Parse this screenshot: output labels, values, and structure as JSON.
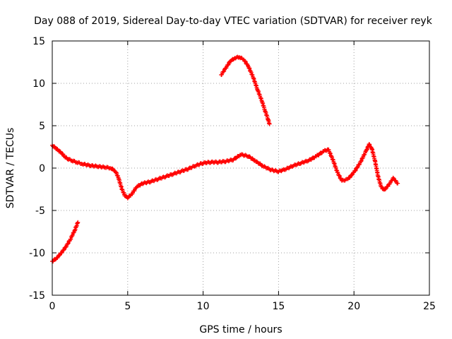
{
  "chart_data": {
    "type": "scatter",
    "title": "Day 088 of 2019, Sidereal Day-to-day VTEC variation (SDTVAR) for receiver reyk",
    "xlabel": "GPS time / hours",
    "ylabel": "SDTVAR / TECUs",
    "xlim": [
      0,
      25
    ],
    "ylim": [
      -15,
      15
    ],
    "x_ticks": [
      0,
      5,
      10,
      15,
      20,
      25
    ],
    "y_ticks": [
      -15,
      -10,
      -5,
      0,
      5,
      10,
      15
    ],
    "x_tick_labels": [
      "0",
      "5",
      "10",
      "15",
      "20",
      "25"
    ],
    "y_tick_labels": [
      "-15",
      "-10",
      "-5",
      "0",
      "5",
      "10",
      "15"
    ],
    "grid": true,
    "marker": "+",
    "color": "#ff0000",
    "series": [
      {
        "name": "main-trace",
        "points": [
          [
            0.0,
            2.7
          ],
          [
            0.2,
            2.4
          ],
          [
            0.4,
            2.1
          ],
          [
            0.6,
            1.8
          ],
          [
            0.8,
            1.4
          ],
          [
            1.0,
            1.1
          ],
          [
            1.3,
            0.9
          ],
          [
            1.6,
            0.7
          ],
          [
            2.0,
            0.5
          ],
          [
            2.5,
            0.3
          ],
          [
            3.0,
            0.2
          ],
          [
            3.5,
            0.1
          ],
          [
            3.9,
            0.0
          ],
          [
            4.2,
            -0.4
          ],
          [
            4.4,
            -1.2
          ],
          [
            4.6,
            -2.4
          ],
          [
            4.8,
            -3.2
          ],
          [
            5.0,
            -3.5
          ],
          [
            5.3,
            -3.0
          ],
          [
            5.6,
            -2.2
          ],
          [
            6.0,
            -1.8
          ],
          [
            6.5,
            -1.6
          ],
          [
            7.0,
            -1.3
          ],
          [
            7.5,
            -1.0
          ],
          [
            8.0,
            -0.7
          ],
          [
            8.5,
            -0.4
          ],
          [
            9.0,
            -0.1
          ],
          [
            9.5,
            0.3
          ],
          [
            10.0,
            0.6
          ],
          [
            10.5,
            0.7
          ],
          [
            11.0,
            0.7
          ],
          [
            11.5,
            0.8
          ],
          [
            12.0,
            1.0
          ],
          [
            12.5,
            1.6
          ],
          [
            13.0,
            1.4
          ],
          [
            13.5,
            0.8
          ],
          [
            14.0,
            0.2
          ],
          [
            14.5,
            -0.2
          ],
          [
            15.0,
            -0.4
          ],
          [
            15.5,
            -0.1
          ],
          [
            16.0,
            0.3
          ],
          [
            16.5,
            0.6
          ],
          [
            17.0,
            0.9
          ],
          [
            17.5,
            1.4
          ],
          [
            18.0,
            2.0
          ],
          [
            18.3,
            2.2
          ],
          [
            18.6,
            1.0
          ],
          [
            18.9,
            -0.5
          ],
          [
            19.2,
            -1.5
          ],
          [
            19.6,
            -1.3
          ],
          [
            20.0,
            -0.5
          ],
          [
            20.4,
            0.6
          ],
          [
            20.8,
            2.0
          ],
          [
            21.0,
            2.8
          ],
          [
            21.2,
            2.2
          ],
          [
            21.4,
            0.8
          ],
          [
            21.6,
            -1.0
          ],
          [
            21.8,
            -2.2
          ],
          [
            22.0,
            -2.6
          ],
          [
            22.3,
            -2.0
          ],
          [
            22.6,
            -1.2
          ],
          [
            22.9,
            -1.8
          ]
        ]
      },
      {
        "name": "upper-arc-trace",
        "points": [
          [
            11.2,
            11.0
          ],
          [
            11.5,
            11.8
          ],
          [
            11.8,
            12.6
          ],
          [
            12.1,
            13.0
          ],
          [
            12.4,
            13.1
          ],
          [
            12.7,
            12.8
          ],
          [
            13.0,
            12.0
          ],
          [
            13.3,
            10.8
          ],
          [
            13.6,
            9.3
          ],
          [
            13.9,
            7.9
          ],
          [
            14.1,
            6.8
          ],
          [
            14.3,
            5.8
          ],
          [
            14.4,
            5.2
          ]
        ]
      },
      {
        "name": "lower-left-trace",
        "points": [
          [
            0.0,
            -11.0
          ],
          [
            0.3,
            -10.6
          ],
          [
            0.6,
            -10.0
          ],
          [
            0.9,
            -9.3
          ],
          [
            1.2,
            -8.4
          ],
          [
            1.5,
            -7.3
          ],
          [
            1.7,
            -6.4
          ]
        ]
      }
    ]
  }
}
